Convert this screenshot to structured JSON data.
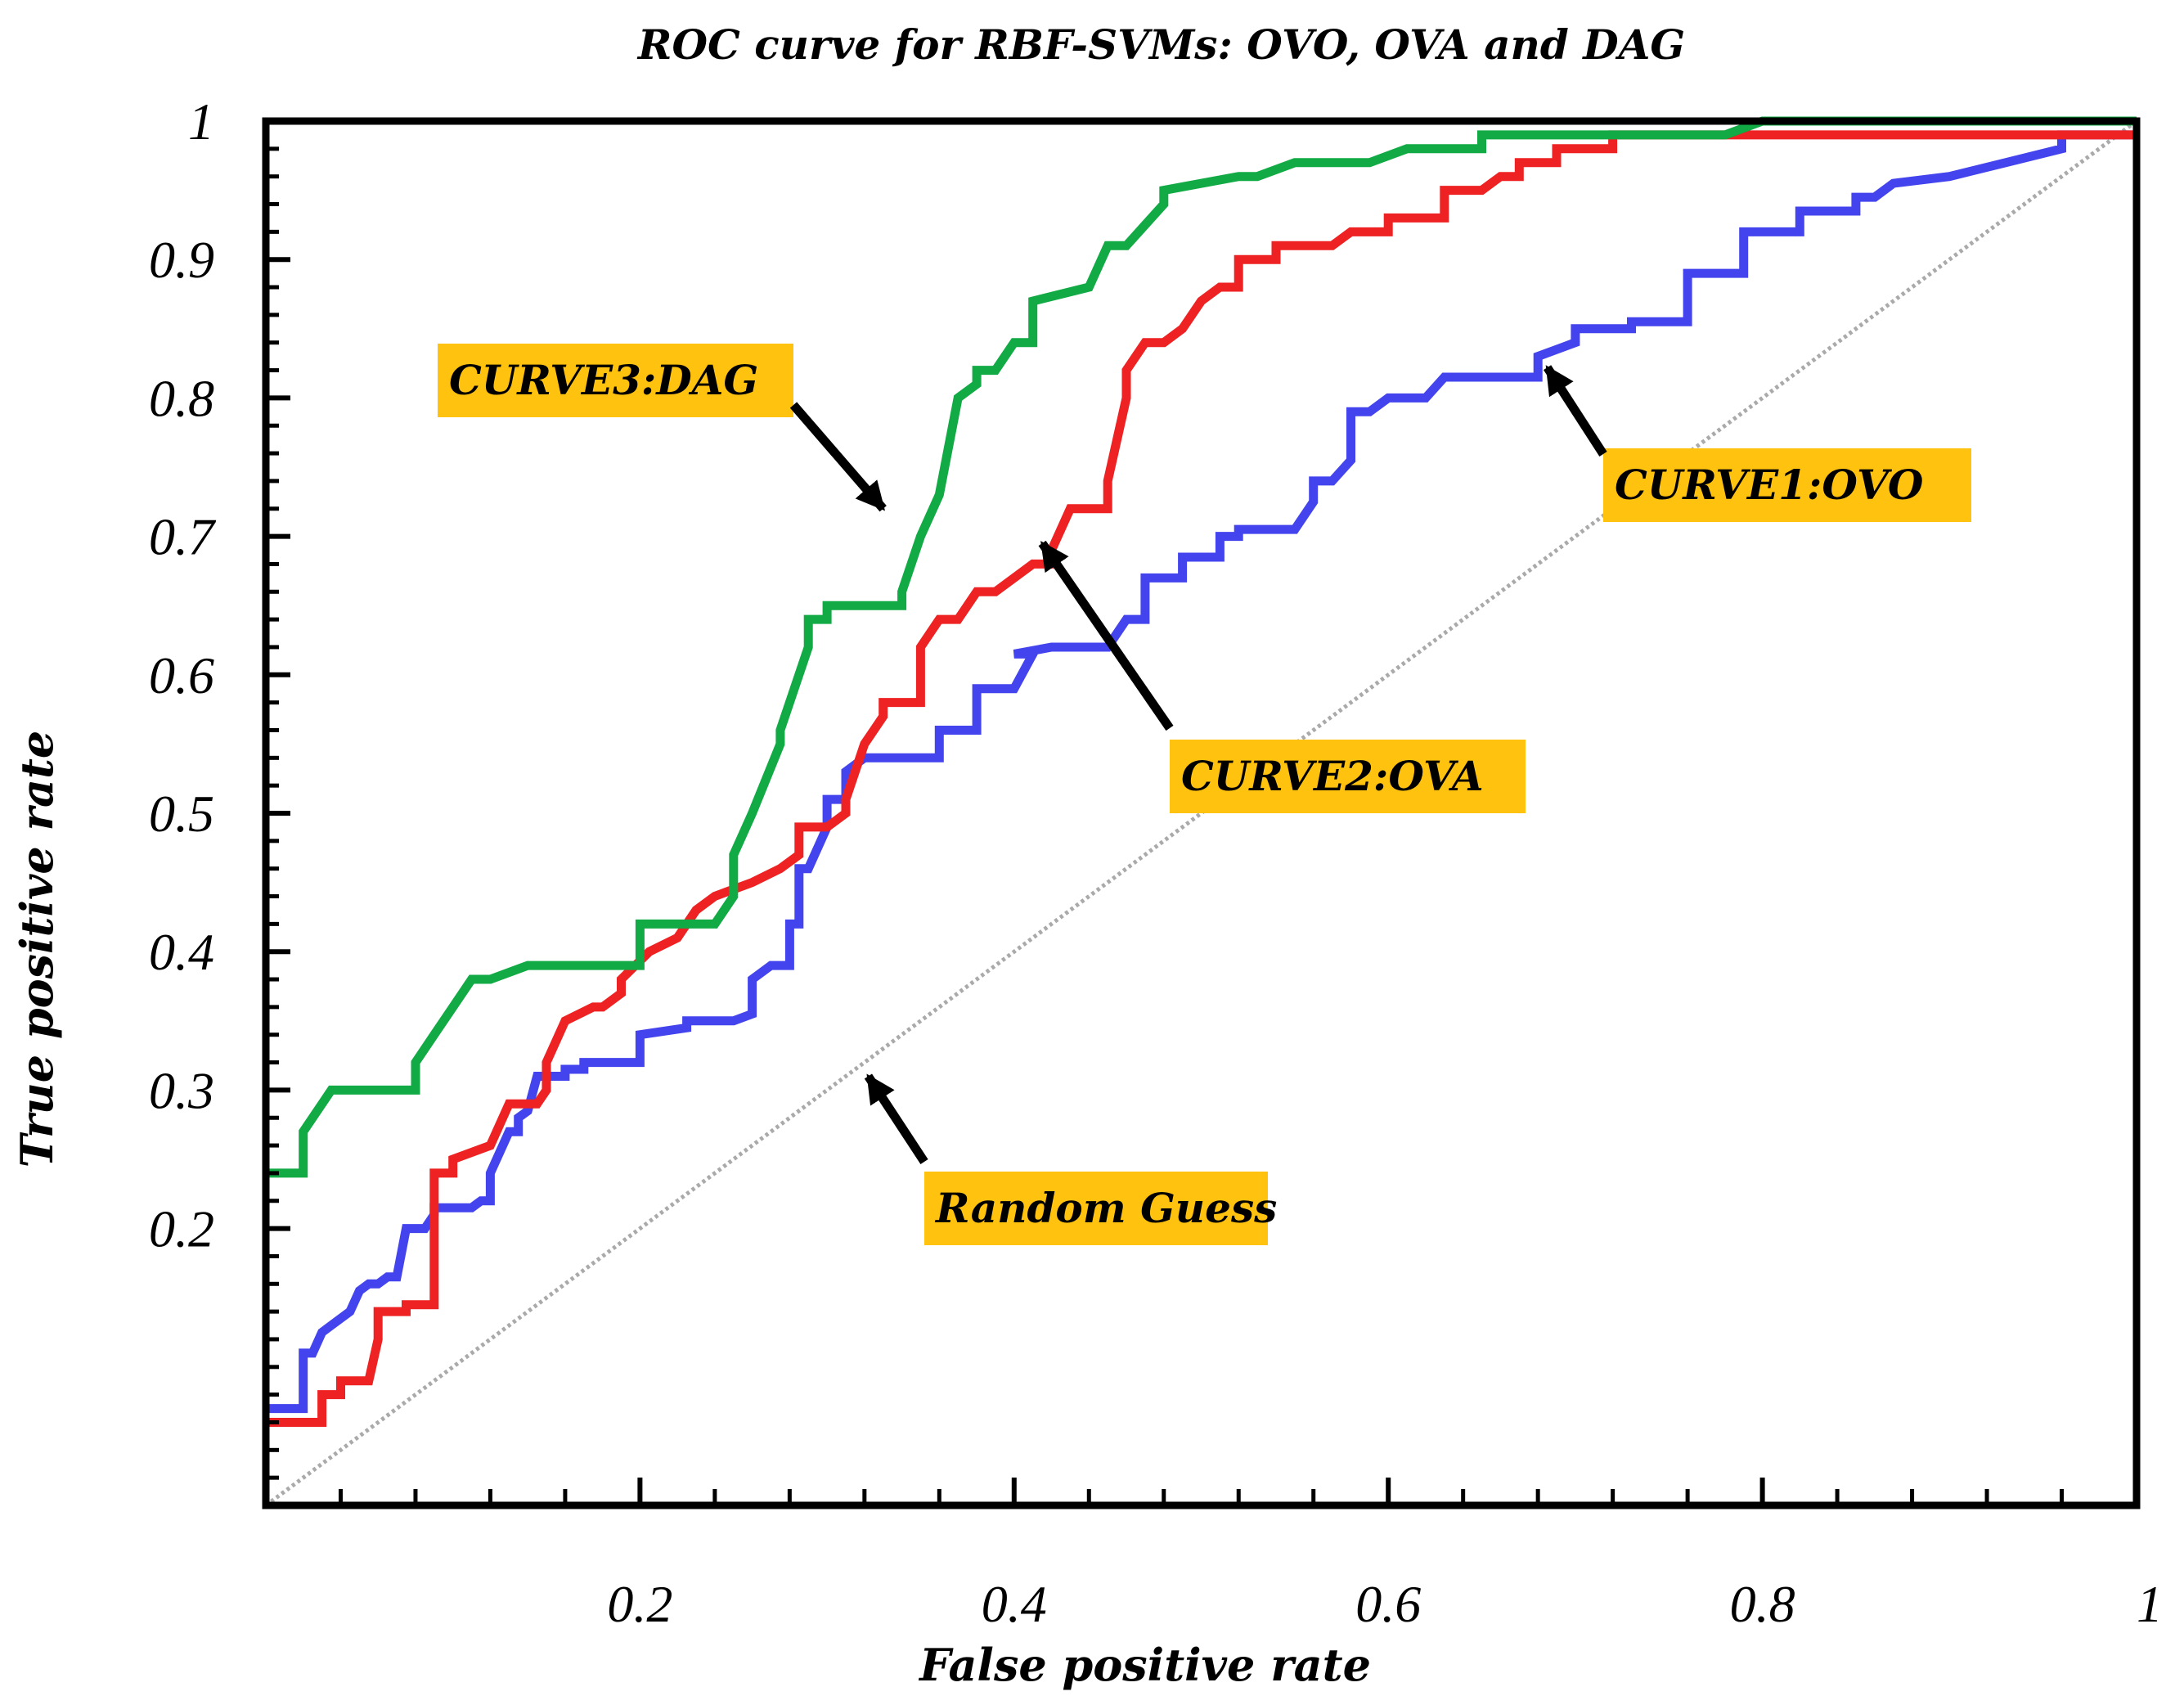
{
  "chart_data": {
    "type": "line",
    "title": "ROC curve for RBF-SVMs: OVO, OVA and DAG",
    "xlabel": "False positive rate",
    "ylabel": "True positive rate",
    "xlim": [
      0,
      1
    ],
    "ylim": [
      0,
      1
    ],
    "x_ticks": [
      {
        "v": 0.2,
        "label": "0.2"
      },
      {
        "v": 0.4,
        "label": "0.4"
      },
      {
        "v": 0.6,
        "label": "0.6"
      },
      {
        "v": 0.8,
        "label": "0.8"
      },
      {
        "v": 1.0,
        "label": "1"
      }
    ],
    "y_ticks": [
      {
        "v": 0.2,
        "label": "0.2"
      },
      {
        "v": 0.3,
        "label": "0.3"
      },
      {
        "v": 0.4,
        "label": "0.4"
      },
      {
        "v": 0.5,
        "label": "0.5"
      },
      {
        "v": 0.6,
        "label": "0.6"
      },
      {
        "v": 0.7,
        "label": "0.7"
      },
      {
        "v": 0.8,
        "label": "0.8"
      },
      {
        "v": 0.9,
        "label": "0.9"
      },
      {
        "v": 1.0,
        "label": "1"
      }
    ],
    "series": [
      {
        "name": "Random Guess",
        "color": "#aaaaaa",
        "dashed": true,
        "x": [
          0,
          1
        ],
        "y": [
          0,
          1
        ]
      },
      {
        "name": "CURVE1:OVO",
        "color": "#4444ee",
        "x": [
          0,
          0.02,
          0.02,
          0.025,
          0.03,
          0.035,
          0.045,
          0.05,
          0.055,
          0.06,
          0.065,
          0.07,
          0.075,
          0.085,
          0.09,
          0.09,
          0.11,
          0.115,
          0.12,
          0.12,
          0.13,
          0.135,
          0.135,
          0.14,
          0.145,
          0.16,
          0.16,
          0.17,
          0.17,
          0.185,
          0.2,
          0.2,
          0.225,
          0.225,
          0.25,
          0.26,
          0.26,
          0.27,
          0.28,
          0.28,
          0.285,
          0.285,
          0.29,
          0.3,
          0.3,
          0.31,
          0.31,
          0.32,
          0.33,
          0.36,
          0.36,
          0.38,
          0.38,
          0.4,
          0.41,
          0.4,
          0.42,
          0.45,
          0.46,
          0.47,
          0.47,
          0.49,
          0.49,
          0.51,
          0.51,
          0.52,
          0.52,
          0.55,
          0.56,
          0.56,
          0.57,
          0.58,
          0.58,
          0.59,
          0.6,
          0.62,
          0.63,
          0.63,
          0.66,
          0.66,
          0.68,
          0.68,
          0.7,
          0.7,
          0.73,
          0.73,
          0.76,
          0.76,
          0.79,
          0.79,
          0.8,
          0.82,
          0.82,
          0.85,
          0.85,
          0.86,
          0.87,
          0.87,
          0.9,
          0.9,
          0.93,
          0.93,
          0.96,
          0.96,
          0.98,
          0.98,
          1.0
        ],
        "y": [
          0.07,
          0.07,
          0.11,
          0.11,
          0.125,
          0.13,
          0.14,
          0.155,
          0.16,
          0.16,
          0.165,
          0.165,
          0.2,
          0.2,
          0.21,
          0.215,
          0.215,
          0.22,
          0.22,
          0.24,
          0.27,
          0.27,
          0.28,
          0.285,
          0.31,
          0.31,
          0.315,
          0.315,
          0.32,
          0.32,
          0.32,
          0.34,
          0.345,
          0.35,
          0.35,
          0.355,
          0.38,
          0.39,
          0.39,
          0.42,
          0.42,
          0.46,
          0.46,
          0.49,
          0.51,
          0.51,
          0.53,
          0.54,
          0.54,
          0.54,
          0.56,
          0.56,
          0.59,
          0.59,
          0.615,
          0.615,
          0.62,
          0.62,
          0.64,
          0.64,
          0.67,
          0.67,
          0.685,
          0.685,
          0.7,
          0.7,
          0.705,
          0.705,
          0.725,
          0.74,
          0.74,
          0.755,
          0.79,
          0.79,
          0.8,
          0.8,
          0.815,
          0.815,
          0.815,
          0.815,
          0.815,
          0.83,
          0.84,
          0.85,
          0.85,
          0.855,
          0.855,
          0.89,
          0.89,
          0.92,
          0.92,
          0.92,
          0.935,
          0.935,
          0.945,
          0.945,
          0.955,
          0.955,
          0.96,
          0.96,
          0.97,
          0.97,
          0.98,
          0.99,
          0.99,
          0.99,
          0.99
        ]
      },
      {
        "name": "CURVE2:OVA",
        "color": "#ee2222",
        "x": [
          0,
          0.03,
          0.03,
          0.04,
          0.04,
          0.055,
          0.06,
          0.06,
          0.075,
          0.075,
          0.08,
          0.09,
          0.09,
          0.1,
          0.1,
          0.12,
          0.13,
          0.13,
          0.14,
          0.145,
          0.15,
          0.15,
          0.16,
          0.175,
          0.18,
          0.19,
          0.19,
          0.205,
          0.22,
          0.23,
          0.24,
          0.24,
          0.26,
          0.275,
          0.285,
          0.285,
          0.3,
          0.3,
          0.31,
          0.31,
          0.32,
          0.33,
          0.33,
          0.35,
          0.35,
          0.36,
          0.37,
          0.38,
          0.38,
          0.39,
          0.41,
          0.42,
          0.42,
          0.43,
          0.44,
          0.45,
          0.45,
          0.46,
          0.46,
          0.47,
          0.48,
          0.49,
          0.5,
          0.51,
          0.52,
          0.52,
          0.54,
          0.54,
          0.56,
          0.57,
          0.58,
          0.6,
          0.6,
          0.63,
          0.63,
          0.65,
          0.66,
          0.67,
          0.67,
          0.69,
          0.69,
          0.72,
          0.72,
          0.74,
          0.74,
          1.0
        ],
        "y": [
          0.06,
          0.06,
          0.08,
          0.08,
          0.09,
          0.09,
          0.12,
          0.14,
          0.14,
          0.145,
          0.145,
          0.145,
          0.24,
          0.24,
          0.25,
          0.26,
          0.29,
          0.29,
          0.29,
          0.29,
          0.3,
          0.32,
          0.35,
          0.36,
          0.36,
          0.37,
          0.38,
          0.4,
          0.41,
          0.43,
          0.44,
          0.44,
          0.45,
          0.46,
          0.47,
          0.49,
          0.49,
          0.49,
          0.5,
          0.51,
          0.55,
          0.57,
          0.58,
          0.58,
          0.62,
          0.64,
          0.64,
          0.66,
          0.66,
          0.66,
          0.68,
          0.68,
          0.69,
          0.72,
          0.72,
          0.72,
          0.74,
          0.8,
          0.82,
          0.84,
          0.84,
          0.85,
          0.87,
          0.88,
          0.88,
          0.9,
          0.9,
          0.91,
          0.91,
          0.91,
          0.92,
          0.92,
          0.93,
          0.93,
          0.95,
          0.95,
          0.96,
          0.96,
          0.97,
          0.97,
          0.98,
          0.98,
          0.99,
          0.99,
          0.99,
          0.99
        ]
      },
      {
        "name": "CURVE3:DAG",
        "color": "#11aa44",
        "x": [
          0,
          0.02,
          0.02,
          0.03,
          0.035,
          0.08,
          0.08,
          0.09,
          0.1,
          0.11,
          0.12,
          0.14,
          0.17,
          0.2,
          0.2,
          0.24,
          0.25,
          0.25,
          0.26,
          0.26,
          0.275,
          0.275,
          0.29,
          0.29,
          0.3,
          0.3,
          0.34,
          0.34,
          0.35,
          0.36,
          0.37,
          0.38,
          0.38,
          0.39,
          0.4,
          0.41,
          0.41,
          0.44,
          0.45,
          0.46,
          0.48,
          0.48,
          0.52,
          0.53,
          0.55,
          0.56,
          0.59,
          0.61,
          0.61,
          0.65,
          0.65,
          0.68,
          0.73,
          0.7,
          0.78,
          0.8,
          0.85,
          0.9,
          1.0
        ],
        "y": [
          0.24,
          0.24,
          0.27,
          0.29,
          0.3,
          0.3,
          0.32,
          0.34,
          0.36,
          0.38,
          0.38,
          0.39,
          0.39,
          0.39,
          0.42,
          0.42,
          0.44,
          0.47,
          0.5,
          0.5,
          0.55,
          0.56,
          0.62,
          0.64,
          0.64,
          0.65,
          0.65,
          0.66,
          0.7,
          0.73,
          0.8,
          0.81,
          0.82,
          0.82,
          0.84,
          0.84,
          0.87,
          0.88,
          0.91,
          0.91,
          0.94,
          0.95,
          0.96,
          0.96,
          0.97,
          0.97,
          0.97,
          0.98,
          0.98,
          0.98,
          0.99,
          0.99,
          0.99,
          0.99,
          0.99,
          1.0,
          1.0,
          1.0,
          1.0
        ]
      }
    ],
    "annotations": [
      {
        "id": "dag",
        "text": "CURVE3:DAG",
        "fill": "#ffc20e",
        "arrow_to": {
          "x": 0.33,
          "y": 0.72
        }
      },
      {
        "id": "ovo",
        "text": "CURVE1:OVO",
        "fill": "#ffc20e",
        "arrow_to": {
          "x": 0.685,
          "y": 0.822
        }
      },
      {
        "id": "ova",
        "text": "CURVE2:OVA",
        "fill": "#ffc20e",
        "arrow_to": {
          "x": 0.415,
          "y": 0.695
        }
      },
      {
        "id": "random",
        "text": "Random Guess",
        "fill": "#ffc20e",
        "arrow_to": {
          "x": 0.322,
          "y": 0.31
        }
      }
    ]
  }
}
